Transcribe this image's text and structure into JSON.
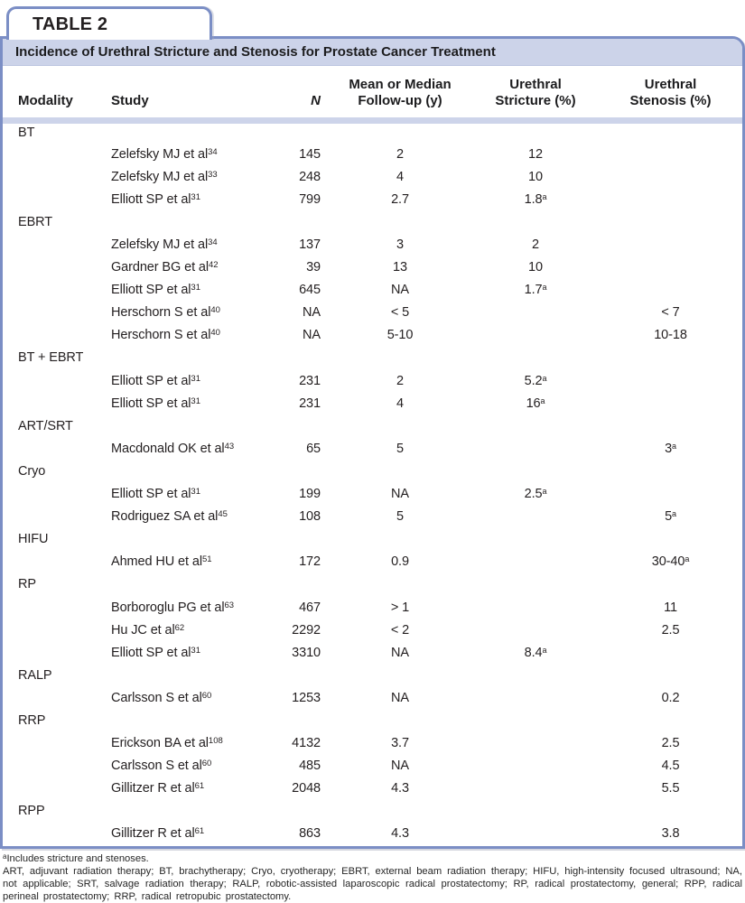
{
  "tab_label": "TABLE 2",
  "title": "Incidence of Urethral Stricture and Stenosis for Prostate Cancer Treatment",
  "columns": {
    "modality": "Modality",
    "study": "Study",
    "n": "N",
    "followup_line1": "Mean or Median",
    "followup_line2": "Follow-up (y)",
    "stricture_line1": "Urethral",
    "stricture_line2": "Stricture (%)",
    "stenosis_line1": "Urethral",
    "stenosis_line2": "Stenosis (%)"
  },
  "sections": [
    {
      "modality": "BT",
      "rows": [
        {
          "study": "Zelefsky MJ et al",
          "ref": "34",
          "n": "145",
          "fu": "2",
          "stricture": "12",
          "stricture_sup": "",
          "stenosis": "",
          "stenosis_sup": ""
        },
        {
          "study": "Zelefsky MJ et al",
          "ref": "33",
          "n": "248",
          "fu": "4",
          "stricture": "10",
          "stricture_sup": "",
          "stenosis": "",
          "stenosis_sup": ""
        },
        {
          "study": "Elliott SP et al",
          "ref": "31",
          "n": "799",
          "fu": "2.7",
          "stricture": "1.8",
          "stricture_sup": "a",
          "stenosis": "",
          "stenosis_sup": ""
        }
      ]
    },
    {
      "modality": "EBRT",
      "rows": [
        {
          "study": "Zelefsky MJ et al",
          "ref": "34",
          "n": "137",
          "fu": "3",
          "stricture": "2",
          "stricture_sup": "",
          "stenosis": "",
          "stenosis_sup": ""
        },
        {
          "study": "Gardner BG et al",
          "ref": "42",
          "n": "39",
          "fu": "13",
          "stricture": "10",
          "stricture_sup": "",
          "stenosis": "",
          "stenosis_sup": ""
        },
        {
          "study": "Elliott SP et al",
          "ref": "31",
          "n": "645",
          "fu": "NA",
          "stricture": "1.7",
          "stricture_sup": "a",
          "stenosis": "",
          "stenosis_sup": ""
        },
        {
          "study": "Herschorn S et al",
          "ref": "40",
          "n": "NA",
          "fu": "< 5",
          "stricture": "",
          "stricture_sup": "",
          "stenosis": "< 7",
          "stenosis_sup": ""
        },
        {
          "study": "Herschorn S et al",
          "ref": "40",
          "n": "NA",
          "fu": "5-10",
          "stricture": "",
          "stricture_sup": "",
          "stenosis": "10-18",
          "stenosis_sup": ""
        }
      ]
    },
    {
      "modality": "BT + EBRT",
      "rows": [
        {
          "study": "Elliott SP et al",
          "ref": "31",
          "n": "231",
          "fu": "2",
          "stricture": "5.2",
          "stricture_sup": "a",
          "stenosis": "",
          "stenosis_sup": ""
        },
        {
          "study": "Elliott SP et al",
          "ref": "31",
          "n": "231",
          "fu": "4",
          "stricture": "16",
          "stricture_sup": "a",
          "stenosis": "",
          "stenosis_sup": ""
        }
      ]
    },
    {
      "modality": "ART/SRT",
      "rows": [
        {
          "study": "Macdonald OK et al",
          "ref": "43",
          "n": "65",
          "fu": "5",
          "stricture": "",
          "stricture_sup": "",
          "stenosis": "3",
          "stenosis_sup": "a"
        }
      ]
    },
    {
      "modality": "Cryo",
      "rows": [
        {
          "study": "Elliott SP et al",
          "ref": "31",
          "n": "199",
          "fu": "NA",
          "stricture": "2.5",
          "stricture_sup": "a",
          "stenosis": "",
          "stenosis_sup": ""
        },
        {
          "study": "Rodriguez SA et al",
          "ref": "45",
          "n": "108",
          "fu": "5",
          "stricture": "",
          "stricture_sup": "",
          "stenosis": "5",
          "stenosis_sup": "a"
        }
      ]
    },
    {
      "modality": "HIFU",
      "rows": [
        {
          "study": "Ahmed HU et al",
          "ref": "51",
          "n": "172",
          "fu": "0.9",
          "stricture": "",
          "stricture_sup": "",
          "stenosis": "30-40",
          "stenosis_sup": "a"
        }
      ]
    },
    {
      "modality": "RP",
      "rows": [
        {
          "study": "Borboroglu PG et al",
          "ref": "63",
          "n": "467",
          "fu": "> 1",
          "stricture": "",
          "stricture_sup": "",
          "stenosis": "11",
          "stenosis_sup": ""
        },
        {
          "study": "Hu JC et al",
          "ref": "62",
          "n": "2292",
          "fu": "< 2",
          "stricture": "",
          "stricture_sup": "",
          "stenosis": "2.5",
          "stenosis_sup": ""
        },
        {
          "study": "Elliott SP et al",
          "ref": "31",
          "n": "3310",
          "fu": "NA",
          "stricture": "8.4",
          "stricture_sup": "a",
          "stenosis": "",
          "stenosis_sup": ""
        }
      ]
    },
    {
      "modality": "RALP",
      "rows": [
        {
          "study": "Carlsson S et al",
          "ref": "60",
          "n": "1253",
          "fu": "NA",
          "stricture": "",
          "stricture_sup": "",
          "stenosis": "0.2",
          "stenosis_sup": ""
        }
      ]
    },
    {
      "modality": "RRP",
      "rows": [
        {
          "study": "Erickson BA et al",
          "ref": "108",
          "n": "4132",
          "fu": "3.7",
          "stricture": "",
          "stricture_sup": "",
          "stenosis": "2.5",
          "stenosis_sup": ""
        },
        {
          "study": "Carlsson S et al",
          "ref": "60",
          "n": "485",
          "fu": "NA",
          "stricture": "",
          "stricture_sup": "",
          "stenosis": "4.5",
          "stenosis_sup": ""
        },
        {
          "study": "Gillitzer R et al",
          "ref": "61",
          "n": "2048",
          "fu": "4.3",
          "stricture": "",
          "stricture_sup": "",
          "stenosis": "5.5",
          "stenosis_sup": ""
        }
      ]
    },
    {
      "modality": "RPP",
      "rows": [
        {
          "study": "Gillitzer R et al",
          "ref": "61",
          "n": "863",
          "fu": "4.3",
          "stricture": "",
          "stricture_sup": "",
          "stenosis": "3.8",
          "stenosis_sup": ""
        }
      ]
    }
  ],
  "footnotes": {
    "a_marker": "a",
    "a_text": "Includes stricture and stenoses.",
    "abbreviations": "ART, adjuvant radiation therapy; BT, brachytherapy; Cryo, cryotherapy; EBRT, external beam radiation therapy; HIFU, high-intensity focused ultrasound; NA, not applicable; SRT, salvage radiation therapy; RALP, robotic-assisted laparoscopic radical prostatectomy; RP, radical prostatectomy, general; RPP, radical perineal prostatectomy; RRP, radical retropubic prostatectomy."
  },
  "colors": {
    "border_blue": "#7b8ec5",
    "title_band": "#ccd3e9",
    "header_strip": "#cdd4ea",
    "text": "#231f20"
  }
}
